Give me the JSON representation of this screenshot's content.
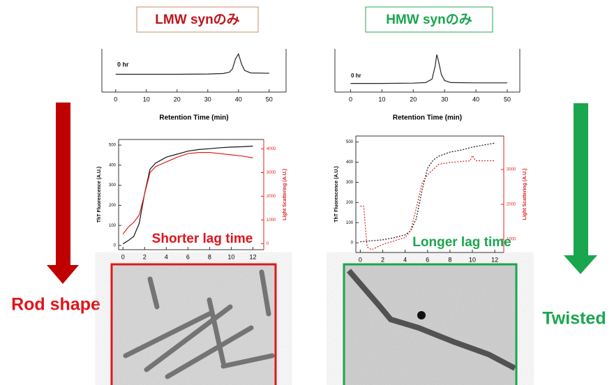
{
  "labels": {
    "left_title": "LMW synのみ",
    "right_title": "HMW synのみ",
    "left_result": "Rod shape",
    "right_result": "Twisted"
  },
  "chart_data": [
    {
      "type": "line",
      "xlabel": "Retention Time (min)",
      "annotation": "0 hr",
      "xlim": [
        -4.5,
        55.5
      ],
      "xticks": [
        0,
        10,
        20,
        30,
        40,
        50
      ],
      "ylim": [
        -0.5,
        1.2
      ],
      "series": [
        {
          "color": "#222222",
          "x": [
            0,
            10,
            20,
            30,
            35,
            37,
            38,
            39,
            40,
            41,
            42,
            44,
            50
          ],
          "values": [
            0.2,
            0.2,
            0.2,
            0.21,
            0.23,
            0.28,
            0.4,
            0.8,
            1.0,
            0.6,
            0.35,
            0.25,
            0.24
          ]
        }
      ]
    },
    {
      "type": "line",
      "xlabel": "Retention Time (min)",
      "annotation": "0 hr",
      "xlim": [
        -5,
        54
      ],
      "xticks": [
        0,
        10,
        20,
        30,
        40,
        50
      ],
      "ylim": [
        -0.3,
        1.2
      ],
      "series": [
        {
          "color": "#222222",
          "x": [
            0,
            10,
            20,
            24,
            26,
            27,
            27.5,
            28,
            29,
            30,
            32,
            40,
            50
          ],
          "values": [
            0,
            0,
            0.01,
            0.03,
            0.15,
            0.6,
            1.0,
            0.8,
            0.3,
            0.1,
            0.03,
            0.02,
            0.02
          ]
        }
      ]
    },
    {
      "type": "line",
      "ylabel": "ThT Fluorescence (A.U.)",
      "y2label": "Light Scattering (A.U.)",
      "annotation": "Shorter lag time",
      "xlim": [
        -0.4,
        13
      ],
      "xticks": [
        0,
        2,
        4,
        6,
        8,
        10,
        12
      ],
      "ylim": [
        -21,
        528
      ],
      "yticks": [
        0,
        100,
        200,
        300,
        400,
        500
      ],
      "y2lim": [
        -260,
        4400
      ],
      "y2ticks": [
        0,
        1000,
        2000,
        3000,
        4000
      ],
      "series": [
        {
          "color": "#111111",
          "line_style": "solid",
          "x": [
            0,
            0.5,
            1,
            1.5,
            2,
            2.5,
            3,
            4,
            5,
            6,
            7,
            8,
            9,
            10,
            11,
            12
          ],
          "values": [
            8,
            25,
            45,
            110,
            260,
            380,
            410,
            440,
            455,
            470,
            478,
            482,
            487,
            490,
            492,
            495
          ]
        },
        {
          "color": "#e02020",
          "line_style": "solid",
          "axis": "y2",
          "x": [
            0,
            0.5,
            1,
            1.5,
            2,
            2.5,
            3,
            4,
            5,
            6,
            7,
            8,
            9,
            10,
            11,
            12
          ],
          "values": [
            400,
            700,
            900,
            1200,
            2100,
            3000,
            3250,
            3450,
            3650,
            3800,
            3850,
            3850,
            3800,
            3750,
            3700,
            3620
          ]
        }
      ]
    },
    {
      "type": "line",
      "ylabel": "ThT Fluorescence (A.U.)",
      "y2label": "Light Scattering (A.U.)",
      "annotation": "Longer lag time",
      "xlim": [
        -0.4,
        12.8
      ],
      "xticks": [
        0,
        2,
        4,
        6,
        8,
        10,
        12
      ],
      "ylim": [
        -48,
        530
      ],
      "yticks": [
        0,
        100,
        200,
        300,
        400,
        500
      ],
      "y2lim": [
        620,
        3960
      ],
      "y2ticks": [
        1000,
        2000,
        3000
      ],
      "series": [
        {
          "color": "#111111",
          "line_style": "dotted",
          "x": [
            0,
            1,
            2,
            3,
            4,
            4.5,
            5,
            5.5,
            6,
            6.5,
            7,
            8,
            9,
            10,
            11,
            12
          ],
          "values": [
            5,
            10,
            15,
            25,
            40,
            60,
            120,
            260,
            370,
            410,
            430,
            450,
            460,
            475,
            485,
            495
          ]
        },
        {
          "color": "#e02020",
          "line_style": "dotted",
          "axis": "y2",
          "x": [
            0,
            0.3,
            0.6,
            1,
            2,
            3,
            4,
            4.5,
            5,
            5.5,
            6,
            6.5,
            7,
            8,
            9,
            9.8,
            10,
            10.3,
            11,
            12
          ],
          "values": [
            1950,
            1950,
            780,
            700,
            850,
            950,
            1050,
            1250,
            1900,
            2600,
            2850,
            3000,
            3150,
            3200,
            3230,
            3250,
            3400,
            3250,
            3250,
            3250
          ]
        }
      ]
    }
  ]
}
